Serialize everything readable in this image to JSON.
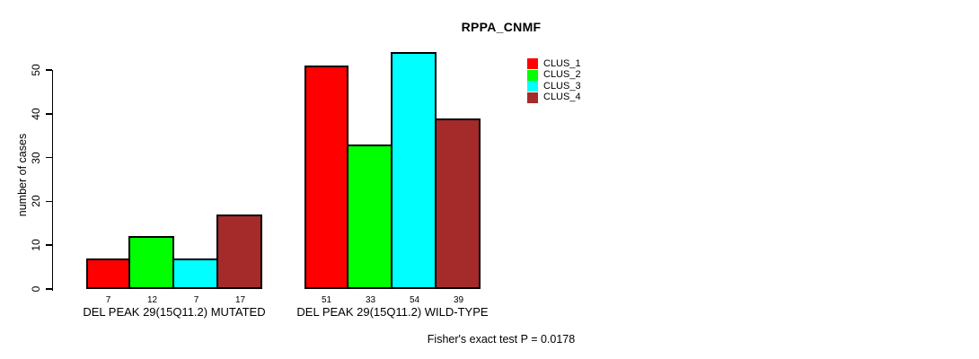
{
  "title": "RPPA_CNMF",
  "footer_note": "Fisher's exact test P = 0.0178",
  "accent_colors": {
    "clus_1": "#FF0000",
    "clus_2": "#00FF00",
    "clus_3": "#00FFFF",
    "clus_4": "#A52A2A",
    "axis": "#000000",
    "background": "#FFFFFF"
  },
  "chart_data": {
    "type": "bar",
    "title": "RPPA_CNMF",
    "xlabel": "",
    "ylabel": "number of cases",
    "ylim": [
      0,
      55
    ],
    "yticks": [
      0,
      10,
      20,
      30,
      40,
      50
    ],
    "grid": false,
    "legend_position": "top-right",
    "bar_borders": "black",
    "categories": [
      "DEL PEAK 29(15Q11.2) MUTATED",
      "DEL PEAK 29(15Q11.2) WILD-TYPE"
    ],
    "series": [
      {
        "name": "CLUS_1",
        "color": "#FF0000",
        "values": [
          7,
          51
        ]
      },
      {
        "name": "CLUS_2",
        "color": "#00FF00",
        "values": [
          12,
          33
        ]
      },
      {
        "name": "CLUS_3",
        "color": "#00FFFF",
        "values": [
          7,
          54
        ]
      },
      {
        "name": "CLUS_4",
        "color": "#A52A2A",
        "values": [
          17,
          39
        ]
      }
    ],
    "bar_value_labels": [
      [
        7,
        12,
        7,
        17
      ],
      [
        51,
        33,
        54,
        39
      ]
    ],
    "annotation": "Fisher's exact test P = 0.0178"
  }
}
